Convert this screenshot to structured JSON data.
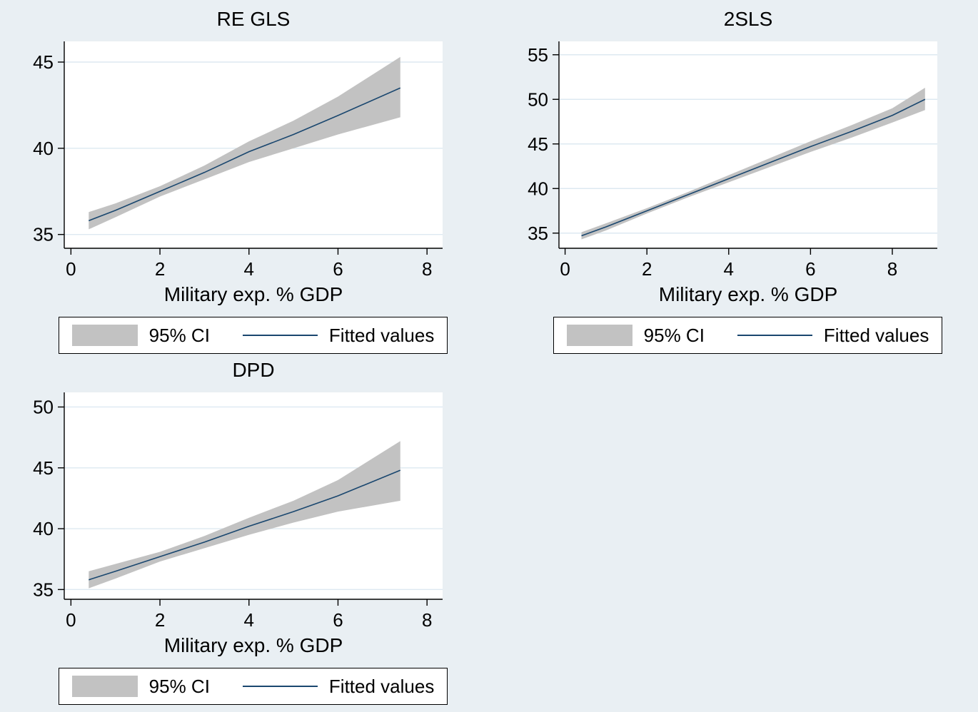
{
  "style": {
    "background": "#e9eff3",
    "plot_background": "#ffffff",
    "grid_color": "#dde9f1",
    "band_color": "#c2c2c2",
    "line_color": "#1a476f",
    "axis_color": "#000000",
    "text_color": "#000000"
  },
  "chart_data": [
    {
      "type": "area",
      "title": "RE GLS",
      "xlabel": "Military exp. % GDP",
      "xlim": [
        -0.15,
        8.35
      ],
      "ylim": [
        34.2,
        46.2
      ],
      "xticks": [
        0,
        2,
        4,
        6,
        8
      ],
      "yticks": [
        35,
        40,
        45
      ],
      "legend": [
        "95% CI",
        "Fitted values"
      ],
      "grid": true,
      "legend_position": "bottom",
      "series": [
        {
          "name": "95% CI",
          "type": "band",
          "x": [
            0.4,
            1,
            2,
            3,
            4,
            5,
            6,
            7.4
          ],
          "lower": [
            35.3,
            36.0,
            37.2,
            38.2,
            39.2,
            40.0,
            40.8,
            41.8
          ],
          "upper": [
            36.3,
            36.8,
            37.8,
            39.0,
            40.4,
            41.6,
            43.0,
            45.3
          ]
        },
        {
          "name": "Fitted values",
          "type": "line",
          "x": [
            0.4,
            1,
            2,
            3,
            4,
            5,
            6,
            7.4
          ],
          "y": [
            35.8,
            36.4,
            37.5,
            38.6,
            39.8,
            40.8,
            41.9,
            43.5
          ]
        }
      ]
    },
    {
      "type": "area",
      "title": "2SLS",
      "xlabel": "Military exp. % GDP",
      "xlim": [
        -0.15,
        9.1
      ],
      "ylim": [
        33.3,
        56.5
      ],
      "xticks": [
        0,
        2,
        4,
        6,
        8
      ],
      "yticks": [
        35,
        40,
        45,
        50,
        55
      ],
      "legend": [
        "95% CI",
        "Fitted values"
      ],
      "grid": true,
      "legend_position": "bottom",
      "series": [
        {
          "name": "95% CI",
          "type": "band",
          "x": [
            0.4,
            1,
            2,
            3,
            4,
            5,
            6,
            7,
            8,
            8.8
          ],
          "lower": [
            34.3,
            35.3,
            37.2,
            39.0,
            40.7,
            42.4,
            44.1,
            45.7,
            47.4,
            48.8
          ],
          "upper": [
            35.1,
            36.1,
            37.8,
            39.6,
            41.5,
            43.4,
            45.3,
            47.1,
            49.0,
            51.3
          ]
        },
        {
          "name": "Fitted values",
          "type": "line",
          "x": [
            0.4,
            1,
            2,
            3,
            4,
            5,
            6,
            7,
            8,
            8.8
          ],
          "y": [
            34.7,
            35.7,
            37.5,
            39.3,
            41.1,
            42.9,
            44.7,
            46.4,
            48.2,
            50.0
          ]
        }
      ]
    },
    {
      "type": "area",
      "title": "DPD",
      "xlabel": "Military exp. % GDP",
      "xlim": [
        -0.15,
        8.35
      ],
      "ylim": [
        34.2,
        51.2
      ],
      "xticks": [
        0,
        2,
        4,
        6,
        8
      ],
      "yticks": [
        35,
        40,
        45,
        50
      ],
      "legend": [
        "95% CI",
        "Fitted values"
      ],
      "grid": true,
      "legend_position": "bottom",
      "series": [
        {
          "name": "95% CI",
          "type": "band",
          "x": [
            0.4,
            1,
            2,
            3,
            4,
            5,
            6,
            7.4
          ],
          "lower": [
            35.1,
            35.9,
            37.3,
            38.4,
            39.5,
            40.5,
            41.4,
            42.3
          ],
          "upper": [
            36.5,
            37.1,
            38.1,
            39.4,
            40.9,
            42.3,
            44.0,
            47.2
          ]
        },
        {
          "name": "Fitted values",
          "type": "line",
          "x": [
            0.4,
            1,
            2,
            3,
            4,
            5,
            6,
            7.4
          ],
          "y": [
            35.8,
            36.5,
            37.7,
            38.9,
            40.2,
            41.4,
            42.7,
            44.8
          ]
        }
      ]
    }
  ]
}
